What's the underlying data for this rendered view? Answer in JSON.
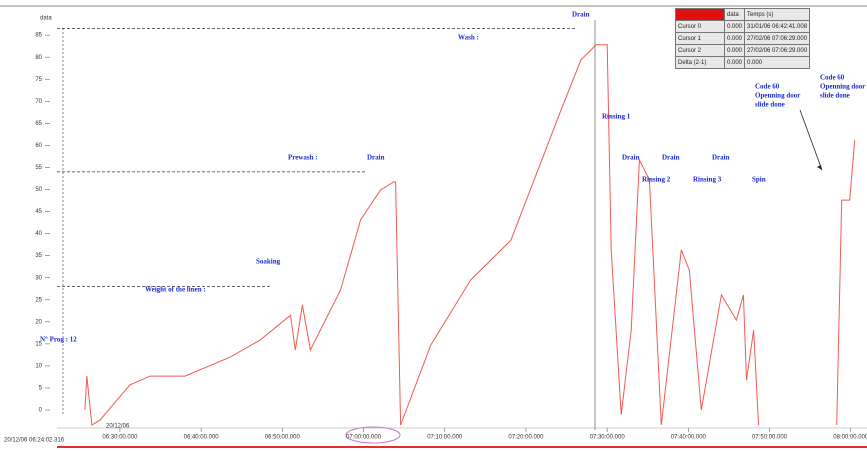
{
  "chart_data": {
    "type": "line",
    "y_label": "data",
    "x_start_label": "20/12/06 06:24:02.316",
    "x_date_label": "20/12/06",
    "xlim": [
      "06:22:15",
      "08:02:00"
    ],
    "xticks": [
      "06:30:00.000",
      "06:40:00.000",
      "06:50:00.000",
      "07:00:00.000",
      "07:10:00.000",
      "07:20:00.000",
      "07:30:00.000",
      "07:40:00.000",
      "07:50:00.000",
      "08:00:00.000"
    ],
    "ylim": [
      -6,
      87
    ],
    "yticks": [
      0,
      5,
      10,
      15,
      20,
      25,
      30,
      35,
      40,
      45,
      50,
      55,
      60,
      65,
      70,
      75,
      80,
      85
    ],
    "ref_lines": [
      28,
      54,
      86.5
    ],
    "series": [
      {
        "name": "data",
        "color": "#f05a50",
        "x": [
          "06:25:41",
          "06:25:55",
          "06:26:33",
          "06:27:32",
          "06:31:14",
          "06:33:42",
          "06:38:01",
          "06:43:35",
          "06:47:17",
          "06:51:00",
          "06:51:36",
          "06:52:28",
          "06:53:27",
          "06:57:10",
          "06:59:38",
          "07:02:06",
          "07:03:42",
          "07:03:57",
          "07:04:34",
          "07:08:16",
          "07:13:12",
          "07:18:09",
          "07:24:19",
          "07:26:47",
          "07:28:38",
          "07:30:00",
          "07:30:30",
          "07:31:44",
          "07:32:58",
          "07:33:58",
          "07:35:12",
          "07:36:40",
          "07:39:08",
          "07:40:07",
          "07:41:36",
          "07:44:04",
          "07:45:55",
          "07:46:47",
          "07:47:10",
          "07:48:02",
          "07:48:39",
          "07:53:00",
          "07:58:16",
          "07:58:53",
          "07:59:52",
          "08:00:29"
        ],
        "values": [
          0,
          7.7,
          -3.4,
          -2.3,
          5.7,
          7.7,
          7.7,
          12,
          15.9,
          21.5,
          13.6,
          23.8,
          13.6,
          27.2,
          43.1,
          49.9,
          51.7,
          51.7,
          -3.4,
          14.7,
          29.5,
          38.5,
          68,
          79.4,
          82.8,
          82.8,
          36.3,
          -1.1,
          18.1,
          56.7,
          52.2,
          -3.4,
          36.3,
          31.7,
          0,
          26.1,
          20.4,
          26.1,
          6.8,
          18.1,
          -3.4,
          null,
          -3.4,
          47.6,
          47.6,
          61.2
        ]
      }
    ]
  },
  "annotations": [
    "N° Prog : 12",
    "Weight of the linen :",
    "Soaking",
    "Prewash :",
    "Drain",
    "Wash :",
    "Drain",
    "Rinsing 1",
    "Drain",
    "Drain",
    "Drain",
    "Rinsing 2",
    "Rinsing 3",
    "Spin",
    "Code 60",
    "Openning door",
    "slide done",
    "Code 60",
    "Openning door",
    "slide done"
  ],
  "cursor_table": {
    "header": [
      "data",
      "Temps (s)"
    ],
    "rows": [
      [
        "Cursor 0",
        "0.000",
        "31/01/06 06:42:41.008"
      ],
      [
        "Cursor 1",
        "0.000",
        "27/02/06 07:06:29.000"
      ],
      [
        "Cursor 2",
        "0.000",
        "27/02/06 07:06:29.000"
      ],
      [
        "Delta (2-1)",
        "0.000",
        "0.000"
      ]
    ]
  }
}
